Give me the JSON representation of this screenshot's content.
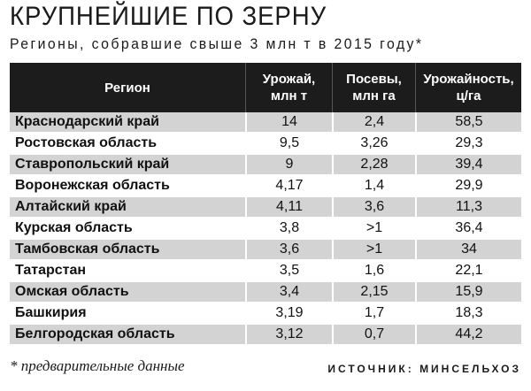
{
  "title": "КРУПНЕЙШИЕ ПО ЗЕРНУ",
  "subtitle": "Регионы, собравшие свыше 3 млн т в 2015 году*",
  "table": {
    "headers": [
      {
        "line1": "Регион",
        "line2": ""
      },
      {
        "line1": "Урожай,",
        "line2": "млн т"
      },
      {
        "line1": "Посевы,",
        "line2": "млн га"
      },
      {
        "line1": "Урожайность,",
        "line2": "ц/га"
      }
    ],
    "rows": [
      {
        "region": "Краснодарский край",
        "harvest": "14",
        "sown": "2,4",
        "yield": "58,5"
      },
      {
        "region": "Ростовская область",
        "harvest": "9,5",
        "sown": "3,26",
        "yield": "29,3"
      },
      {
        "region": "Ставропольский край",
        "harvest": "9",
        "sown": "2,28",
        "yield": "39,4"
      },
      {
        "region": "Воронежская область",
        "harvest": "4,17",
        "sown": "1,4",
        "yield": "29,9"
      },
      {
        "region": "Алтайский край",
        "harvest": "4,11",
        "sown": "3,6",
        "yield": "11,3"
      },
      {
        "region": "Курская область",
        "harvest": "3,8",
        "sown": ">1",
        "yield": "36,4"
      },
      {
        "region": "Тамбовская область",
        "harvest": "3,6",
        "sown": ">1",
        "yield": "34"
      },
      {
        "region": "Татарстан",
        "harvest": "3,5",
        "sown": "1,6",
        "yield": "22,1"
      },
      {
        "region": "Омская область",
        "harvest": "3,4",
        "sown": "2,15",
        "yield": "15,9"
      },
      {
        "region": "Башкирия",
        "harvest": "3,19",
        "sown": "1,7",
        "yield": "18,3"
      },
      {
        "region": "Белгородская область",
        "harvest": "3,12",
        "sown": "0,7",
        "yield": "44,2"
      }
    ]
  },
  "footnote": "* предварительные данные",
  "source": "ИСТОЧНИК: МИНСЕЛЬХОЗ",
  "colors": {
    "header_bg": "#1c1c1c",
    "row_shade": "#d3d3d3"
  }
}
